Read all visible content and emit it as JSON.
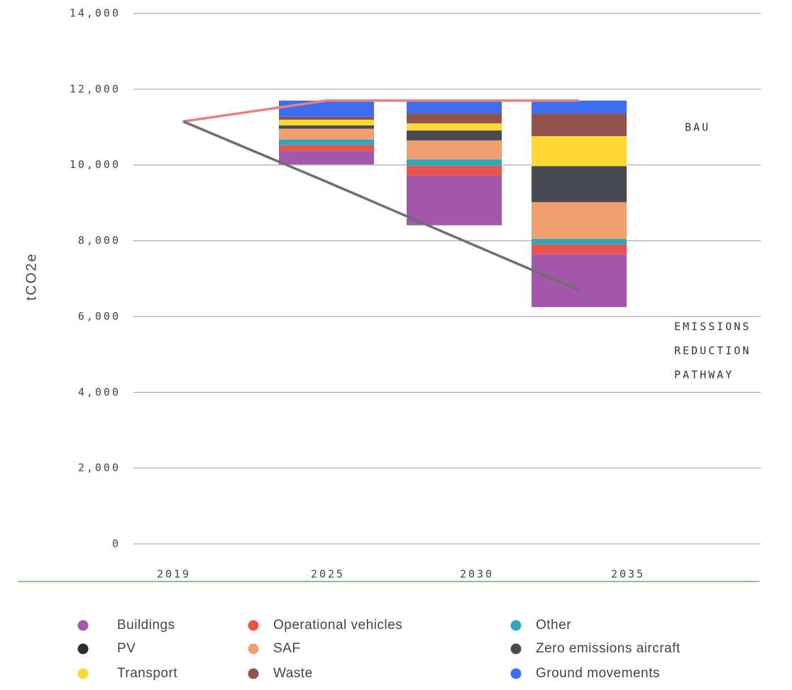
{
  "chart_data": {
    "type": "bar",
    "categories": [
      "2019",
      "2025",
      "2030",
      "2035"
    ],
    "y_label": "tCO2e",
    "ylim": [
      0,
      14000
    ],
    "yticks": [
      {
        "value": 0,
        "label": "0"
      },
      {
        "value": 2000,
        "label": "2,000"
      },
      {
        "value": 4000,
        "label": "4,000"
      },
      {
        "value": 6000,
        "label": "6,000"
      },
      {
        "value": 8000,
        "label": "8,000"
      },
      {
        "value": 10000,
        "label": "10,000"
      },
      {
        "value": 12000,
        "label": "12,000"
      },
      {
        "value": 14000,
        "label": "14,000"
      }
    ],
    "grid": true,
    "series": [
      {
        "name": "Buildings",
        "color": "#a259a9",
        "values": [
          null,
          360,
          1310,
          1390
        ]
      },
      {
        "name": "Operational vehicles",
        "color": "#e8534f",
        "values": [
          null,
          150,
          260,
          260
        ]
      },
      {
        "name": "Other",
        "color": "#2fa8b8",
        "values": [
          null,
          150,
          170,
          150
        ]
      },
      {
        "name": "SAF",
        "color": "#f0a070",
        "values": [
          null,
          280,
          500,
          970
        ]
      },
      {
        "name": "PV",
        "color": "#2c2c33",
        "values": [
          null,
          0,
          0,
          0
        ]
      },
      {
        "name": "Zero emissions aircraft",
        "color": "#474b52",
        "values": [
          null,
          90,
          260,
          950
        ]
      },
      {
        "name": "Transport",
        "color": "#fdd835",
        "values": [
          null,
          150,
          190,
          790
        ]
      },
      {
        "name": "Waste",
        "color": "#94524a",
        "values": [
          null,
          75,
          260,
          600
        ]
      },
      {
        "name": "Ground movements",
        "color": "#3b6ef0",
        "values": [
          null,
          430,
          340,
          340
        ]
      }
    ],
    "lines": [
      {
        "name": "BAU",
        "color": "#e88080",
        "values": [
          11150,
          11700,
          11700,
          11700
        ]
      },
      {
        "name": [
          "EMISSIONS",
          "REDUCTION",
          "PATHWAY"
        ],
        "color": "#6b6f70",
        "values": [
          11150,
          9560,
          8110,
          6700
        ]
      }
    ]
  }
}
